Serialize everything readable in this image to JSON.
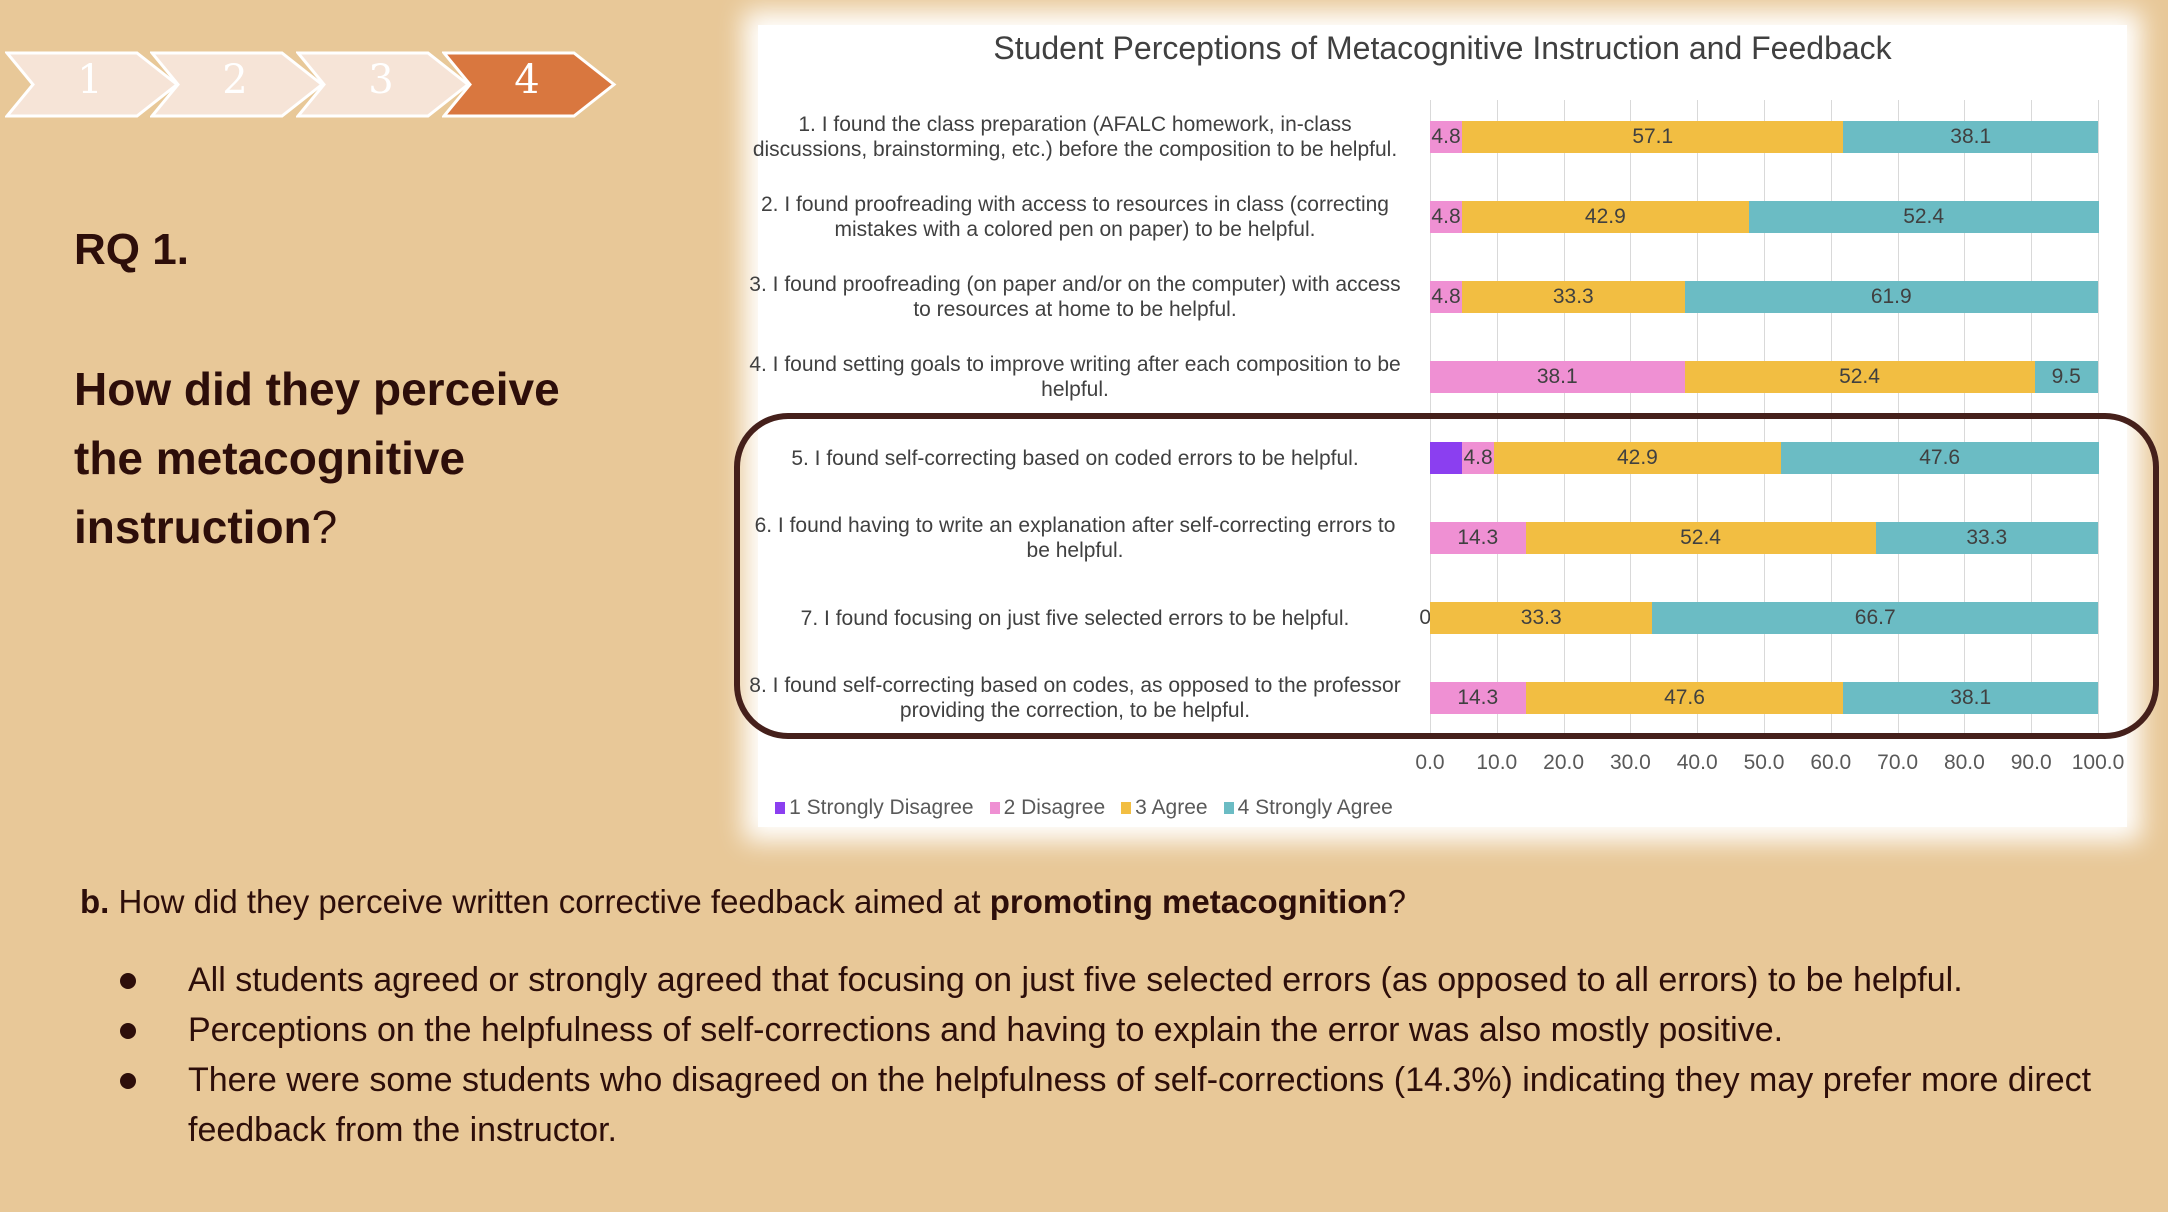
{
  "steps": [
    {
      "label": "1",
      "active": false
    },
    {
      "label": "2",
      "active": false
    },
    {
      "label": "3",
      "active": false
    },
    {
      "label": "4",
      "active": true
    }
  ],
  "colors": {
    "step": "#f6e4d7",
    "step_active": "#d9773f",
    "background": "#e8c898",
    "highlight": "#45201b"
  },
  "heading": "RQ 1.",
  "question": {
    "bold": "How did they perceive the metacognitive instruction",
    "end": "?"
  },
  "chart_data": {
    "type": "bar",
    "orientation": "horizontal-stacked",
    "title": "Student Perceptions of Metacognitive Instruction and Feedback",
    "categories": [
      "1. I found the class preparation (AFALC homework, in-class discussions, brainstorming, etc.) before the composition to be helpful.",
      "2. I found proofreading with access to resources in class (correcting mistakes with a colored pen on paper) to be helpful.",
      "3. I found proofreading (on paper and/or on the computer) with access to resources at home to be helpful.",
      "4. I found setting goals to improve writing after each composition to be helpful.",
      "5. I found self-correcting based on coded errors to be helpful.",
      "6. I found having to write an explanation after self-correcting errors to be helpful.",
      "7. I found focusing on just five selected errors to be helpful.",
      "8. I found self-correcting based on codes, as opposed to the professor providing the correction, to be helpful."
    ],
    "series": [
      {
        "name": "1 Strongly Disagree",
        "color": "#8b3ff0",
        "values": [
          null,
          null,
          null,
          null,
          4.8,
          null,
          null,
          null
        ]
      },
      {
        "name": "2 Disagree",
        "color": "#ef90d3",
        "values": [
          4.8,
          4.8,
          4.8,
          38.1,
          4.8,
          14.3,
          0.0,
          14.3
        ]
      },
      {
        "name": "3 Agree",
        "color": "#f2be42",
        "values": [
          57.1,
          42.9,
          33.3,
          52.4,
          42.9,
          52.4,
          33.3,
          47.6
        ]
      },
      {
        "name": "4 Strongly Agree",
        "color": "#6bbcc4",
        "values": [
          38.1,
          52.4,
          61.9,
          9.5,
          47.6,
          33.3,
          66.7,
          38.1
        ]
      }
    ],
    "xlim": [
      0,
      100
    ],
    "xticks": [
      "0.0",
      "10.0",
      "20.0",
      "30.0",
      "40.0",
      "50.0",
      "60.0",
      "70.0",
      "80.0",
      "90.0",
      "100.0"
    ],
    "grid": true,
    "legend": "bottom",
    "highlighted_rows": [
      5,
      6,
      7,
      8
    ]
  },
  "bottom": {
    "prefix": "b.",
    "text": " How did they perceive written corrective feedback aimed at ",
    "bold": "promoting metacognition",
    "end": "?"
  },
  "bullets": [
    "All students agreed or strongly agreed that focusing on just five selected errors (as opposed to all errors) to be helpful.",
    "Perceptions on the helpfulness of self-corrections and having to explain the error was also mostly positive.",
    "There were some students who disagreed on the helpfulness of self-corrections (14.3%) indicating they may prefer more direct feedback from the instructor."
  ]
}
